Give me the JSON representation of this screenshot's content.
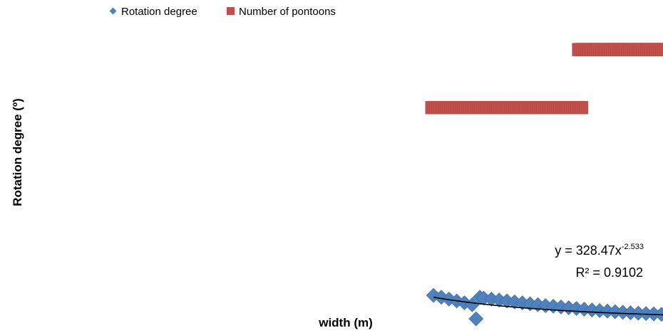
{
  "chart_data": {
    "type": "scatter",
    "xlabel": "width (m)",
    "ylabel": "Rotation degree (º)",
    "xlim": [
      0,
      80
    ],
    "ylim": [
      0,
      1.6
    ],
    "grid": false,
    "legend": "top-left",
    "colors": {
      "rotation": "#4F81BD",
      "pontoons": "#C0504D",
      "trend": "#000000"
    },
    "series": [
      {
        "name": "Rotation degree",
        "marker": "diamond",
        "x": [
          51.5,
          52.5,
          53.5,
          54.5,
          55.5,
          56.5,
          57,
          57.5,
          58,
          59,
          60,
          61,
          62,
          63,
          64,
          65,
          66,
          67,
          68,
          69,
          70,
          71,
          72,
          73,
          74,
          75,
          76,
          77,
          78,
          79,
          80,
          81,
          82,
          83,
          84
        ],
        "y": [
          0.14,
          0.13,
          0.12,
          0.11,
          0.1,
          0.09,
          0.015,
          0.13,
          0.125,
          0.12,
          0.115,
          0.11,
          0.105,
          0.1,
          0.095,
          0.09,
          0.085,
          0.082,
          0.078,
          0.074,
          0.07,
          0.066,
          0.062,
          0.059,
          0.056,
          0.053,
          0.05,
          0.047,
          0.045,
          0.043,
          0.041,
          0.039,
          0.037,
          0.035,
          0.033
        ]
      },
      {
        "name": "Number of pontoons",
        "marker": "square",
        "segments": [
          {
            "x": [
              51,
              71
            ],
            "y": 1.14
          },
          {
            "x": [
              70,
              84
            ],
            "y": 1.45
          }
        ]
      }
    ],
    "trendline": {
      "equation_base": "y = 328.47x",
      "equation_exponent": "-2.533",
      "r2": "R² = 0.9102"
    }
  }
}
